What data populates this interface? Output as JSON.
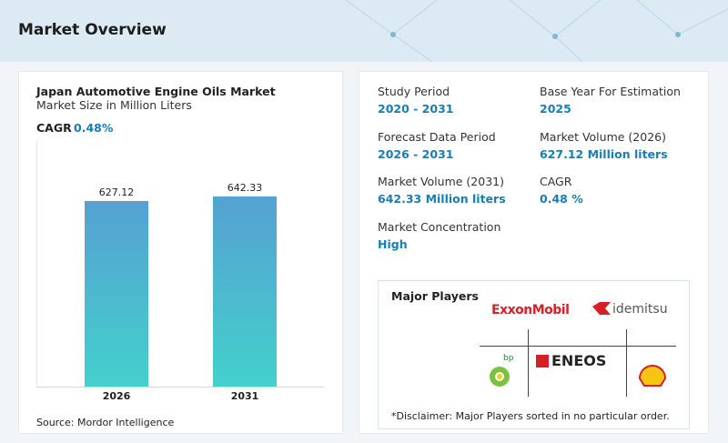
{
  "header": {
    "title": "Market Overview"
  },
  "chart_data": {
    "type": "bar",
    "title": "Japan Automotive Engine Oils Market",
    "subtitle": "Market Size in Million Liters",
    "cagr_label": "CAGR",
    "cagr_value": "0.48%",
    "categories": [
      "2026",
      "2031"
    ],
    "values": [
      627.12,
      642.33
    ],
    "color": "#55a1d2",
    "color_bottom": "#44d0cc",
    "source": "Source: Mordor Intelligence"
  },
  "stats": [
    {
      "label": "Study Period",
      "value": "2020 - 2031"
    },
    {
      "label": "Base Year For Estimation",
      "value": "2025"
    },
    {
      "label": "Forecast Data Period",
      "value": "2026 - 2031"
    },
    {
      "label": "Market Volume (2026)",
      "value": "627.12 Million liters"
    },
    {
      "label": "Market Volume (2031)",
      "value": "642.33 Million liters"
    },
    {
      "label": "CAGR",
      "value": "0.48 %"
    },
    {
      "label": "Market Concentration",
      "value": "High"
    }
  ],
  "major_players": {
    "title": "Major Players",
    "logos": [
      "ExxonMobil",
      "idemitsu",
      "ENEOS",
      "bp"
    ],
    "disclaimer": "*Disclaimer: Major Players sorted in no particular order."
  }
}
